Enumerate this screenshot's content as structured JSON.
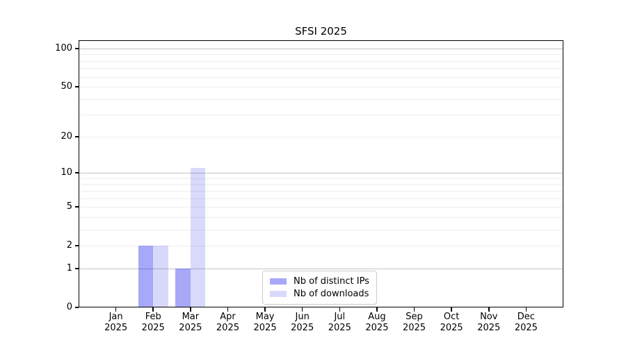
{
  "chart_data": {
    "type": "bar",
    "title": "SFSI 2025",
    "categories": [
      "Jan 2025",
      "Feb 2025",
      "Mar 2025",
      "Apr 2025",
      "May 2025",
      "Jun 2025",
      "Jul 2025",
      "Aug 2025",
      "Sep 2025",
      "Oct 2025",
      "Nov 2025",
      "Dec 2025"
    ],
    "series": [
      {
        "name": "Nb of distinct IPs",
        "color": "rgba(0,0,235,0.34)",
        "values": [
          0,
          2,
          1,
          0,
          0,
          0,
          0,
          0,
          0,
          0,
          0,
          0
        ]
      },
      {
        "name": "Nb of downloads",
        "color": "rgba(0,0,235,0.15)",
        "values": [
          0,
          2,
          11,
          0,
          0,
          0,
          0,
          0,
          0,
          0,
          0,
          0
        ]
      }
    ],
    "xlabel": "",
    "ylabel": "",
    "yscale": "log1p",
    "ylim": [
      0,
      116
    ],
    "yticks": [
      0,
      1,
      2,
      5,
      10,
      20,
      50,
      100
    ],
    "grid": {
      "major_values": [
        1,
        10,
        100
      ],
      "minor_values": [
        2,
        3,
        4,
        5,
        6,
        7,
        8,
        9,
        20,
        30,
        40,
        50,
        60,
        70,
        80,
        90
      ],
      "major_color": "#c3c3c3",
      "minor_color": "#ededed"
    },
    "legend": {
      "position": "lower center",
      "border_color": "#cccccc",
      "background": "#ffffff"
    }
  }
}
